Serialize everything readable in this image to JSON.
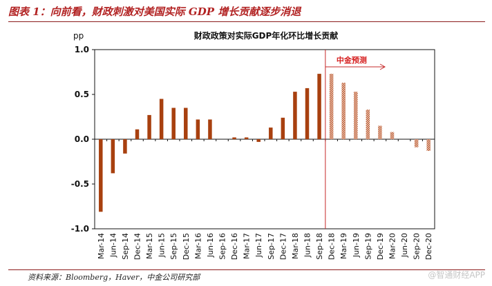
{
  "figure": {
    "title": "图表 1：向前看，财政刺激对美国实际 GDP 增长贡献逐步消退",
    "source": "资料来源：Bloomberg，Haver，中金公司研究部",
    "watermark": "@智通财经APP"
  },
  "chart_data": {
    "type": "bar",
    "title": "财政政策对实际GDP年化环比增长贡献",
    "ylabel": "pp",
    "ylim": [
      -1.0,
      1.0
    ],
    "yticks": [
      "1.0",
      "0.5",
      "0.0",
      "-0.5",
      "-1.0"
    ],
    "ytick_values": [
      1.0,
      0.5,
      0.0,
      -0.5,
      -1.0
    ],
    "categories": [
      "Mar-14",
      "Jun-14",
      "Sep-14",
      "Dec-14",
      "Mar-15",
      "Jun-15",
      "Sep-15",
      "Dec-15",
      "Mar-16",
      "Jun-16",
      "Sep-16",
      "Dec-16",
      "Mar-17",
      "Jun-17",
      "Sep-17",
      "Dec-17",
      "Mar-18",
      "Jun-18",
      "Sep-18",
      "Dec-18",
      "Mar-19",
      "Jun-19",
      "Sep-19",
      "Dec-19",
      "Mar-20",
      "Jun-20",
      "Sep-20",
      "Dec-20"
    ],
    "series": [
      {
        "kind": "actual",
        "values": [
          -0.81,
          -0.38,
          -0.16,
          0.11,
          0.27,
          0.45,
          0.35,
          0.35,
          0.22,
          0.22,
          0.0,
          0.02,
          0.02,
          -0.03,
          0.13,
          0.24,
          0.53,
          0.57,
          0.73,
          null,
          null,
          null,
          null,
          null,
          null,
          null,
          null,
          null
        ],
        "color": "#a8400f"
      },
      {
        "kind": "forecast",
        "values": [
          null,
          null,
          null,
          null,
          null,
          null,
          null,
          null,
          null,
          null,
          null,
          null,
          null,
          null,
          null,
          null,
          null,
          null,
          null,
          0.73,
          0.63,
          0.53,
          0.33,
          0.15,
          0.08,
          0.0,
          -0.09,
          -0.13
        ],
        "color": "#d9997a"
      }
    ],
    "annotation": {
      "text": "中金预测",
      "color": "#d62020"
    },
    "grid": false,
    "legend": "none"
  }
}
